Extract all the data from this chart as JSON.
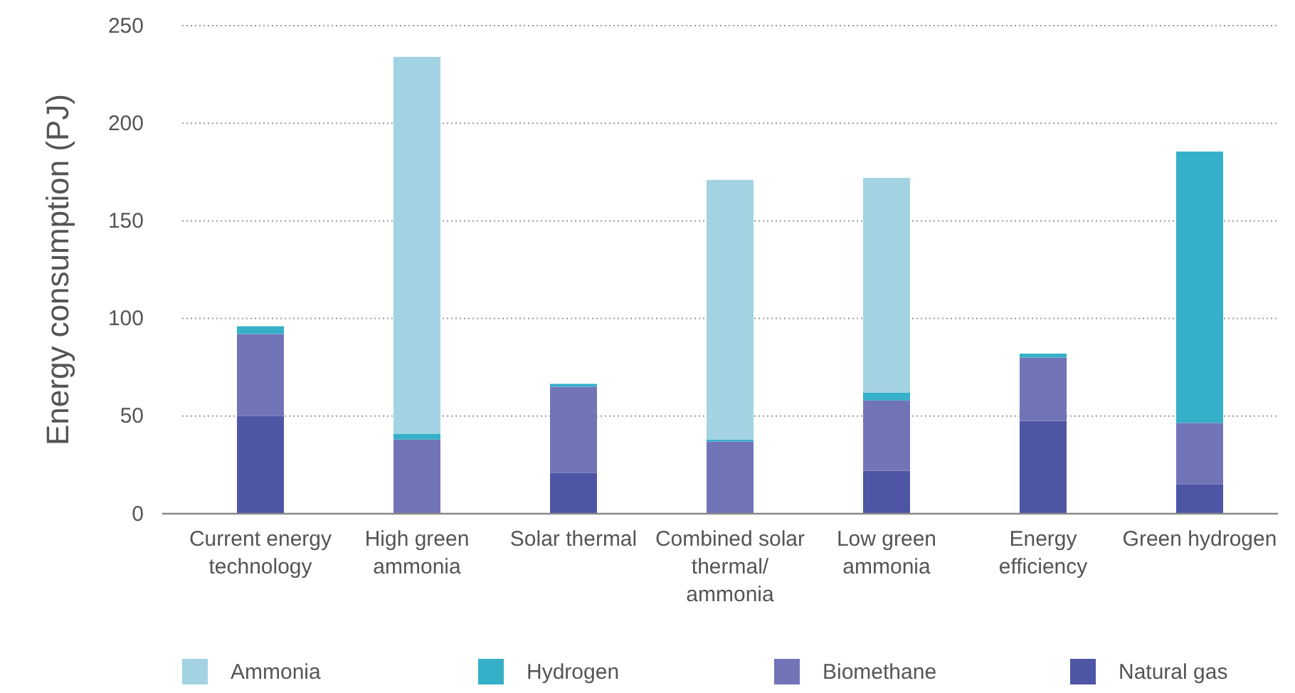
{
  "chart_data": {
    "type": "bar",
    "stacked": true,
    "ylabel": "Energy consumption (PJ)",
    "categories": [
      "Current energy technology",
      "High green ammonia",
      "Solar thermal",
      "Combined solar thermal/ ammonia",
      "Low green ammonia",
      "Energy efficiency",
      "Green hydrogen"
    ],
    "series": [
      {
        "name": "Natural gas",
        "color": "#4f55a5",
        "values": [
          50,
          0,
          21,
          0,
          22,
          47.5,
          15
        ]
      },
      {
        "name": "Biomethane",
        "color": "#7274b8",
        "values": [
          42,
          38,
          44,
          37,
          36,
          32.5,
          31.5
        ]
      },
      {
        "name": "Hydrogen",
        "color": "#35b0c8",
        "values": [
          4,
          3,
          1.5,
          1,
          4,
          2,
          139
        ]
      },
      {
        "name": "Ammonia",
        "color": "#a3d3e2",
        "values": [
          0,
          193,
          0,
          133,
          110,
          0,
          0
        ]
      }
    ],
    "ylim": [
      0,
      250
    ],
    "yticks": [
      0,
      50,
      100,
      150,
      200,
      250
    ],
    "grid": "y",
    "legend": "bottom"
  }
}
